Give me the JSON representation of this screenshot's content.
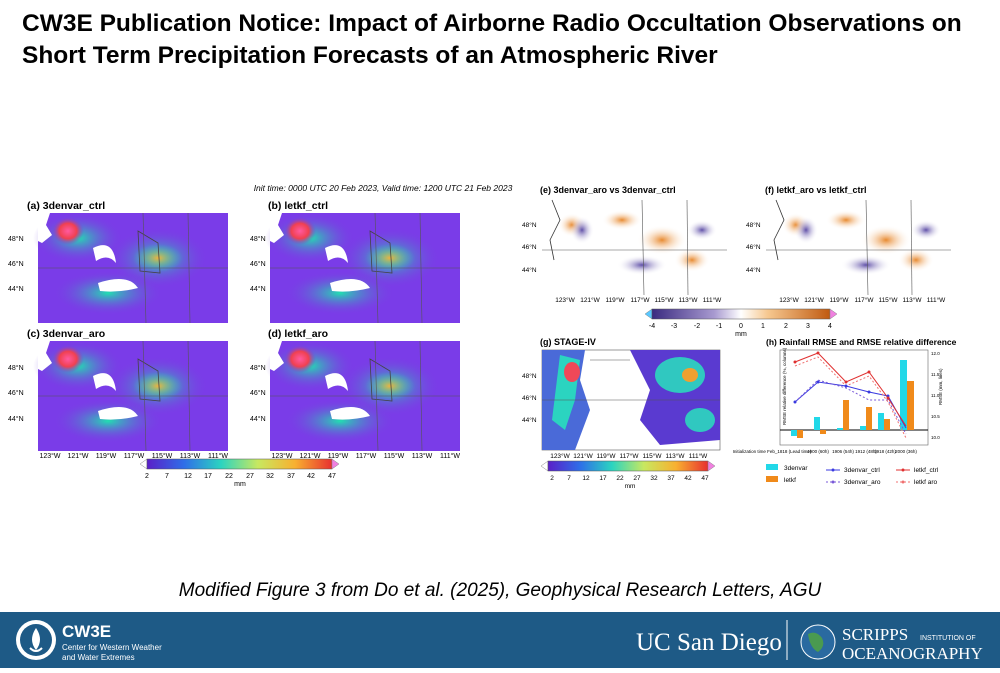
{
  "title": "CW3E Publication Notice: Impact of Airborne Radio Occultation Observations on Short Term Precipitation Forecasts of an Atmospheric River",
  "figure": {
    "init_time_label": "Init time: 0000 UTC 20 Feb 2023,   Valid time: 1200 UTC 21 Feb 2023",
    "panels": {
      "a": "(a) 3denvar_ctrl",
      "b": "(b) letkf_ctrl",
      "c": "(c) 3denvar_aro",
      "d": "(d) letkf_aro",
      "e": "(e) 3denvar_aro vs 3denvar_ctrl",
      "f": "(f) letkf_aro vs letkf_ctrl",
      "g": "(g) STAGE-IV",
      "h": "(h) Rainfall RMSE and RMSE relative difference"
    },
    "lat_labels": [
      "48°N",
      "46°N",
      "44°N"
    ],
    "lon_labels": [
      "123°W",
      "121°W",
      "119°W",
      "117°W",
      "115°W",
      "113°W",
      "111°W"
    ],
    "colorbar_precip": {
      "ticks": [
        "2",
        "7",
        "12",
        "17",
        "22",
        "27",
        "32",
        "37",
        "42",
        "47"
      ],
      "unit": "mm"
    },
    "colorbar_diff": {
      "ticks": [
        "-4",
        "-3",
        "-2",
        "-1",
        "0",
        "1",
        "2",
        "3",
        "4"
      ],
      "unit": "mm"
    },
    "rmse_panel": {
      "x_title": "Initialization time Feb_1818 (Lead time)",
      "x_labels": [
        "1900 (60h)",
        "1906 (54h)",
        "1912 (48h)",
        "1918 (42h)",
        "2000 (36h)"
      ],
      "y_left_label": "RMSE relative difference (%, columns)",
      "y_right_label": "RMSE (mm, lines)",
      "right_ticks": [
        "12.0",
        "11.5",
        "11.0",
        "10.5",
        "10.0"
      ],
      "legend": [
        "3denvar",
        "letkf",
        "3denvar_ctrl",
        "3denvar_aro",
        "letkf_ctrl",
        "letkf aro"
      ]
    }
  },
  "caption": "Modified Figure 3 from Do et al. (2025), Geophysical Research Letters, AGU",
  "footer": {
    "org_name": "CW3E",
    "org_sub_1": "Center for Western Weather",
    "org_sub_2": "and Water Extremes",
    "ucsd": "UC San Diego",
    "scripps_1": "SCRIPPS",
    "scripps_institution": "INSTITUTION OF",
    "scripps_2": "OCEANOGRAPHY"
  },
  "colors": {
    "footer_bg": "#1e5a86",
    "precip_low": "#6a2bd6",
    "precip_mid": "#2bd4c0",
    "precip_high": "#f0505a",
    "diff_neg": "#5a3aa0",
    "diff_pos": "#e07a20",
    "bar_3denvar": "#22d8e8",
    "bar_letkf": "#f08a1a"
  }
}
